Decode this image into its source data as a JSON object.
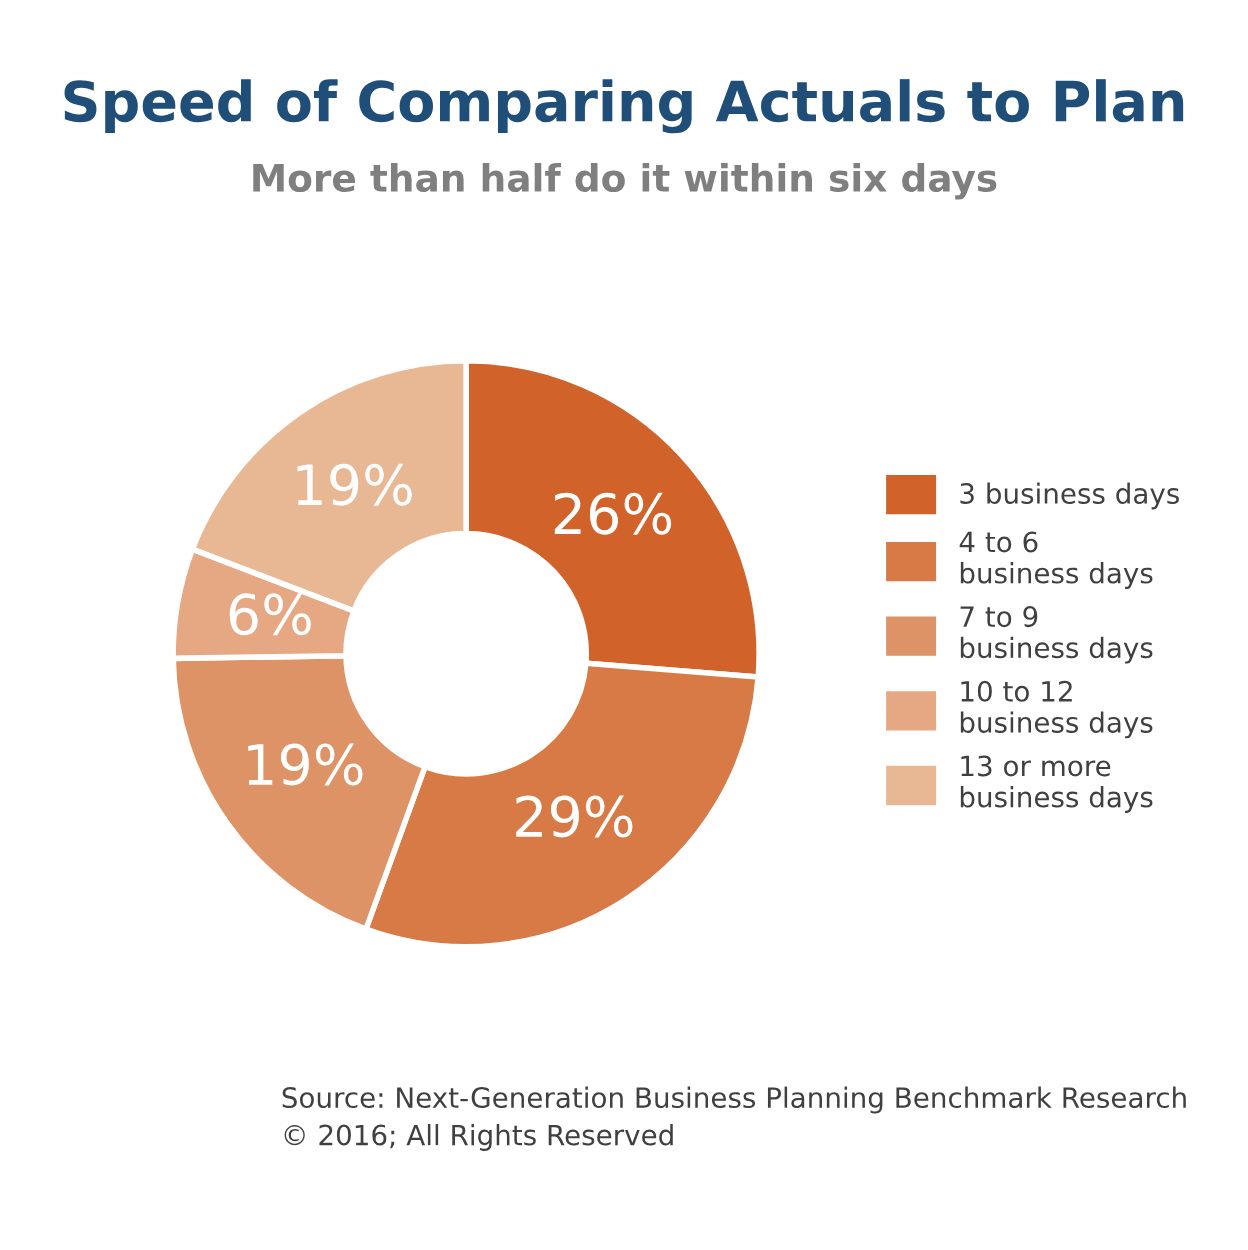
{
  "chart_data": {
    "type": "donut",
    "title": "Speed of Comparing Actuals to Plan",
    "subtitle": "More than half do it within six days",
    "categories": [
      "3 business days",
      "4 to 6\nbusiness days",
      "7 to 9\nbusiness days",
      "10 to 12\nbusiness days",
      "13 or more\nbusiness days"
    ],
    "values": [
      26,
      29,
      19,
      6,
      19
    ],
    "value_labels": [
      "26%",
      "29%",
      "19%",
      "6%",
      "19%"
    ],
    "colors": [
      "#d0622a",
      "#d87a45",
      "#de9366",
      "#e6a883",
      "#e8b793"
    ],
    "legend": "right",
    "annotations": [
      "Source: Next-Generation Business Planning Benchmark Research\n© 2016; All Rights Reserved"
    ]
  }
}
